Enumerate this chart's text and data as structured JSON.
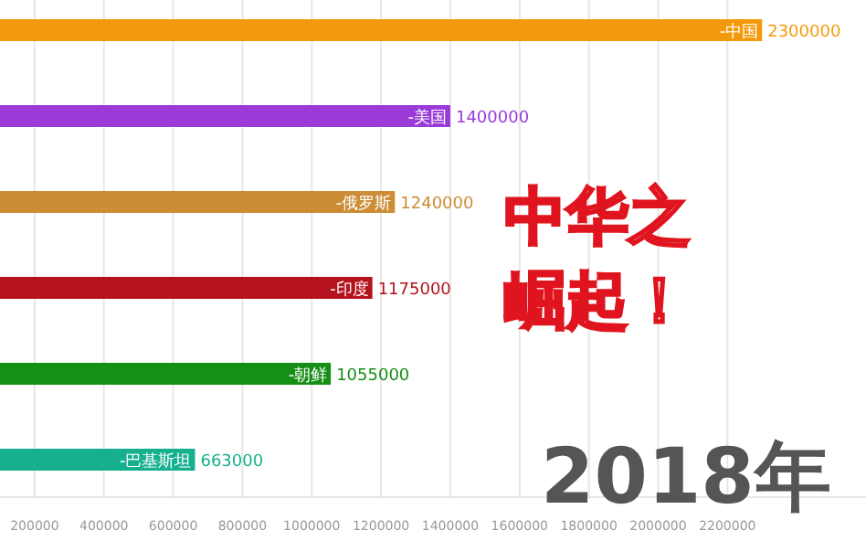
{
  "chart_data": {
    "type": "bar",
    "orientation": "horizontal",
    "categories": [
      "-中国",
      "-美国",
      "-俄罗斯",
      "-印度",
      "-朝鲜",
      "-巴基斯坦"
    ],
    "values": [
      2300000,
      1400000,
      1240000,
      1175000,
      1055000,
      663000
    ],
    "colors": [
      "#f39a0c",
      "#9a3bd8",
      "#cd8d36",
      "#b4121c",
      "#168f16",
      "#17b08f"
    ],
    "xlim": [
      100000,
      2600000
    ],
    "xticks": [
      200000,
      400000,
      600000,
      800000,
      1000000,
      1200000,
      1400000,
      1600000,
      1800000,
      2000000,
      2200000
    ],
    "grid": "x",
    "data_labels": true,
    "annotations": [
      "中华之崛起！",
      "2018年"
    ]
  }
}
